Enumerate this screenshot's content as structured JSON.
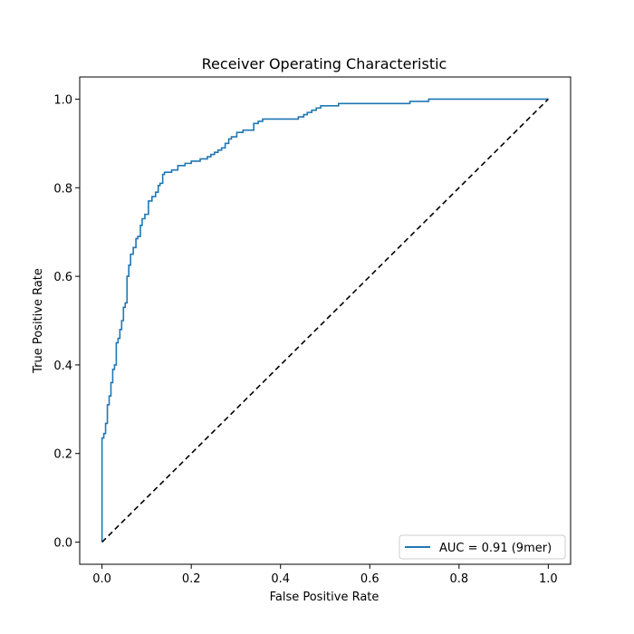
{
  "chart_data": {
    "type": "line",
    "title": "Receiver Operating Characteristic",
    "xlabel": "False Positive Rate",
    "ylabel": "True Positive Rate",
    "xlim": [
      -0.05,
      1.05
    ],
    "ylim": [
      -0.05,
      1.05
    ],
    "xticks": [
      0.0,
      0.2,
      0.4,
      0.6,
      0.8,
      1.0
    ],
    "yticks": [
      0.0,
      0.2,
      0.4,
      0.6,
      0.8,
      1.0
    ],
    "xtick_labels": [
      "0.0",
      "0.2",
      "0.4",
      "0.6",
      "0.8",
      "1.0"
    ],
    "ytick_labels": [
      "0.0",
      "0.2",
      "0.4",
      "0.6",
      "0.8",
      "1.0"
    ],
    "grid": false,
    "legend_position": "lower-right",
    "series": [
      {
        "name": "AUC = 0.91 (9mer)",
        "color": "#1f77b4",
        "style": "step",
        "x": [
          0.0,
          0.0,
          0.004,
          0.004,
          0.008,
          0.008,
          0.012,
          0.012,
          0.016,
          0.016,
          0.02,
          0.02,
          0.024,
          0.024,
          0.028,
          0.028,
          0.032,
          0.032,
          0.036,
          0.036,
          0.04,
          0.04,
          0.044,
          0.044,
          0.048,
          0.048,
          0.052,
          0.052,
          0.056,
          0.056,
          0.06,
          0.06,
          0.064,
          0.064,
          0.07,
          0.07,
          0.076,
          0.076,
          0.08,
          0.08,
          0.086,
          0.086,
          0.09,
          0.09,
          0.096,
          0.096,
          0.104,
          0.104,
          0.112,
          0.112,
          0.12,
          0.12,
          0.126,
          0.126,
          0.13,
          0.13,
          0.136,
          0.136,
          0.14,
          0.14,
          0.156,
          0.156,
          0.17,
          0.17,
          0.186,
          0.186,
          0.2,
          0.2,
          0.22,
          0.22,
          0.236,
          0.236,
          0.244,
          0.244,
          0.252,
          0.252,
          0.26,
          0.26,
          0.268,
          0.268,
          0.276,
          0.276,
          0.284,
          0.284,
          0.29,
          0.29,
          0.302,
          0.302,
          0.316,
          0.316,
          0.34,
          0.34,
          0.35,
          0.35,
          0.36,
          0.36,
          0.44,
          0.44,
          0.452,
          0.452,
          0.46,
          0.46,
          0.47,
          0.47,
          0.48,
          0.48,
          0.49,
          0.49,
          0.53,
          0.53,
          0.69,
          0.69,
          0.732,
          0.732,
          1.0
        ],
        "y": [
          0.0,
          0.235,
          0.235,
          0.245,
          0.245,
          0.268,
          0.268,
          0.31,
          0.31,
          0.33,
          0.33,
          0.36,
          0.36,
          0.39,
          0.39,
          0.4,
          0.4,
          0.45,
          0.45,
          0.46,
          0.46,
          0.48,
          0.48,
          0.5,
          0.5,
          0.53,
          0.53,
          0.54,
          0.54,
          0.6,
          0.6,
          0.625,
          0.625,
          0.65,
          0.65,
          0.665,
          0.665,
          0.685,
          0.685,
          0.69,
          0.69,
          0.715,
          0.715,
          0.73,
          0.73,
          0.74,
          0.74,
          0.77,
          0.77,
          0.78,
          0.78,
          0.79,
          0.79,
          0.805,
          0.805,
          0.81,
          0.81,
          0.83,
          0.83,
          0.835,
          0.835,
          0.84,
          0.84,
          0.85,
          0.85,
          0.855,
          0.855,
          0.86,
          0.86,
          0.865,
          0.865,
          0.87,
          0.87,
          0.875,
          0.875,
          0.88,
          0.88,
          0.885,
          0.885,
          0.89,
          0.89,
          0.9,
          0.9,
          0.91,
          0.91,
          0.915,
          0.915,
          0.925,
          0.925,
          0.93,
          0.93,
          0.945,
          0.945,
          0.95,
          0.95,
          0.955,
          0.955,
          0.96,
          0.96,
          0.965,
          0.965,
          0.97,
          0.97,
          0.975,
          0.975,
          0.98,
          0.98,
          0.985,
          0.985,
          0.99,
          0.99,
          0.995,
          0.995,
          1.0,
          1.0
        ]
      },
      {
        "name": "",
        "color": "#000000",
        "style": "dashed",
        "x": [
          0.0,
          1.0
        ],
        "y": [
          0.0,
          1.0
        ]
      }
    ]
  }
}
